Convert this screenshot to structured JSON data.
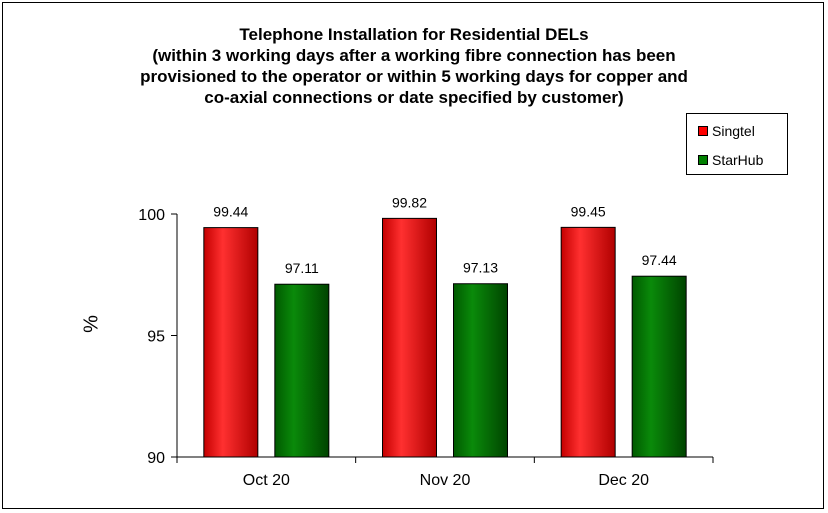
{
  "chart_data": {
    "type": "bar",
    "title_lines": [
      "Telephone Installation for Residential DELs",
      "(within 3 working days after a working fibre connection has been",
      "provisioned to the operator or within 5 working days for copper and",
      "co-axial connections or date specified by customer)"
    ],
    "ylabel": "%",
    "ylim": [
      90,
      100
    ],
    "yticks": [
      90,
      95,
      100
    ],
    "categories": [
      "Oct 20",
      "Nov 20",
      "Dec 20"
    ],
    "series": [
      {
        "name": "Singtel",
        "color": "#ff0000",
        "values": [
          99.44,
          99.82,
          99.45
        ],
        "labels": [
          "99.44",
          "99.82",
          "99.45"
        ]
      },
      {
        "name": "StarHub",
        "color": "#008000",
        "values": [
          97.11,
          97.13,
          97.44
        ],
        "labels": [
          "97.11",
          "97.13",
          "97.44"
        ]
      }
    ],
    "legend_position": "top-right",
    "grid": false
  }
}
